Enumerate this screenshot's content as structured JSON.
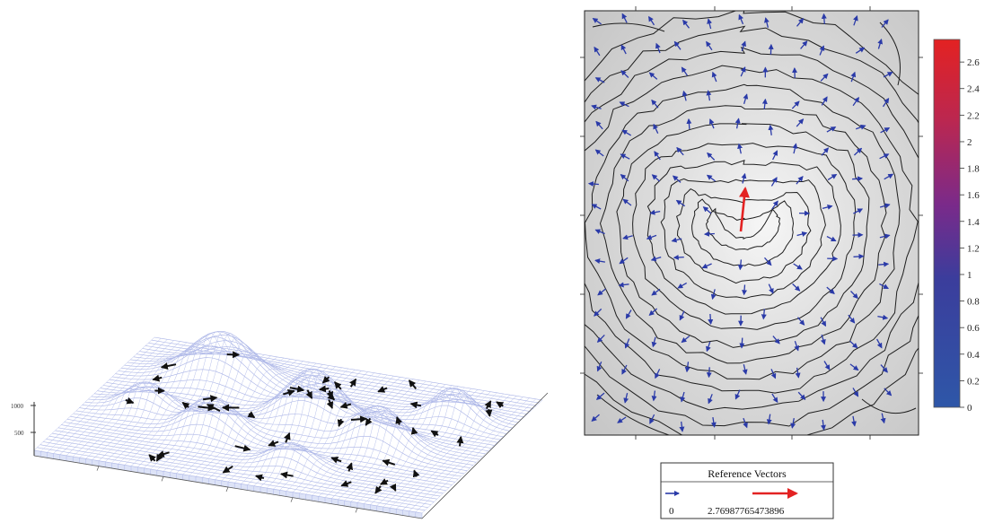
{
  "surface_plot": {
    "z_ticks": [
      "1000",
      "500"
    ],
    "arrow_count": 52
  },
  "chart_data": {
    "type": "contour",
    "title": "",
    "xlabel": "",
    "ylabel": "",
    "colorbar": {
      "ticks": [
        "0",
        "0.2",
        "0.4",
        "0.6",
        "0.8",
        "1",
        "1.2",
        "1.4",
        "1.6",
        "1.8",
        "2",
        "2.2",
        "2.4",
        "2.6"
      ],
      "range": [
        0,
        2.76987765473896
      ],
      "low_color": "#2a55a5",
      "mid_color": "#7a2a8a",
      "high_color": "#e32222"
    },
    "contour_levels": 13,
    "contour_color": "#1e1e1e",
    "vector_color": "#2a3aa8",
    "max_vector_color": "#e32222",
    "max_vector_magnitude": 2.76987765473896
  },
  "legend": {
    "title": "Reference Vectors",
    "min_label": "0",
    "max_label": "2.76987765473896"
  }
}
